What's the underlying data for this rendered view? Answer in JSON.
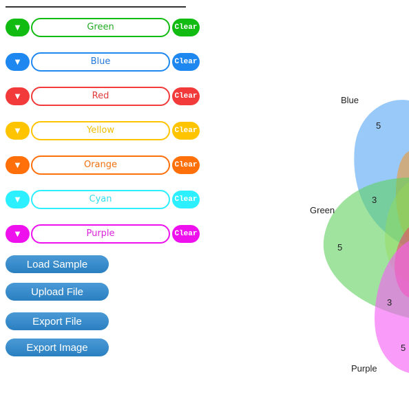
{
  "sets": [
    {
      "name": "Green",
      "toggle_icon": "triangle-down-icon",
      "toggle_glyph": "▼",
      "clear_label": "Clear",
      "color": "#11bb11",
      "text_color": "#22aa22"
    },
    {
      "name": "Blue",
      "toggle_icon": "triangle-down-icon",
      "toggle_glyph": "▼",
      "clear_label": "Clear",
      "color": "#1e88f0",
      "text_color": "#2577d8"
    },
    {
      "name": "Red",
      "toggle_icon": "triangle-down-icon",
      "toggle_glyph": "▼",
      "clear_label": "Clear",
      "color": "#f23a3a",
      "text_color": "#e23b3b"
    },
    {
      "name": "Yellow",
      "toggle_icon": "triangle-down-icon",
      "toggle_glyph": "▼",
      "clear_label": "Clear",
      "color": "#ffc400",
      "text_color": "#f0be00"
    },
    {
      "name": "Orange",
      "toggle_icon": "triangle-down-icon",
      "toggle_glyph": "▼",
      "clear_label": "Clear",
      "color": "#ff6f0a",
      "text_color": "#f0700e"
    },
    {
      "name": "Cyan",
      "toggle_icon": "triangle-down-icon",
      "toggle_glyph": "▼",
      "clear_label": "Clear",
      "color": "#2cefff",
      "text_color": "#2fdfee"
    },
    {
      "name": "Purple",
      "toggle_icon": "triangle-down-icon",
      "toggle_glyph": "▼",
      "clear_label": "Clear",
      "color": "#ee11ee",
      "text_color": "#dd22dd"
    }
  ],
  "actions": {
    "load_sample": "Load Sample",
    "upload_file": "Upload File",
    "export_file": "Export File",
    "export_image": "Export Image"
  },
  "diagram": {
    "labels": {
      "blue": "Blue",
      "green": "Green",
      "purple": "Purple"
    },
    "counts": {
      "blue_only": "5",
      "blue_green": "3",
      "green_only": "5",
      "green_purple": "3",
      "purple_only": "5"
    },
    "colors": {
      "blue": "#5aa8f5",
      "green": "#5fd15f",
      "purple": "#f560f5",
      "orange": "#f29a30",
      "yellow": "#e6e64a"
    }
  }
}
